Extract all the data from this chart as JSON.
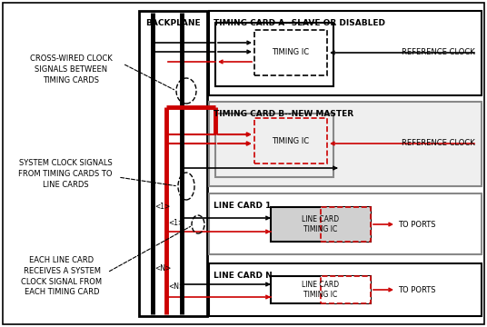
{
  "bg_color": "#ffffff",
  "black": "#000000",
  "red": "#cc0000",
  "gray": "#888888",
  "backplane_label": "BACKPLANE",
  "card_a_label": "TIMING CARD A--SLAVE OR DISABLED",
  "card_b_label": "TIMING CARD B--NEW MASTER",
  "lc1_label": "LINE CARD 1",
  "lcn_label": "LINE CARD N",
  "timing_ic": "TIMING IC",
  "lc_timing_ic": "LINE CARD\nTIMING IC",
  "ref_clock": "REFERENCE CLOCK",
  "to_ports": "TO PORTS",
  "annot1": "CROSS-WIRED CLOCK\nSIGNALS BETWEEN\nTIMING CARDS",
  "annot2": "SYSTEM CLOCK SIGNALS\nFROM TIMING CARDS TO\nLINE CARDS",
  "annot3": "EACH LINE CARD\nRECEIVES A SYSTEM\nCLOCK SIGNAL FROM\nEACH TIMING CARD"
}
